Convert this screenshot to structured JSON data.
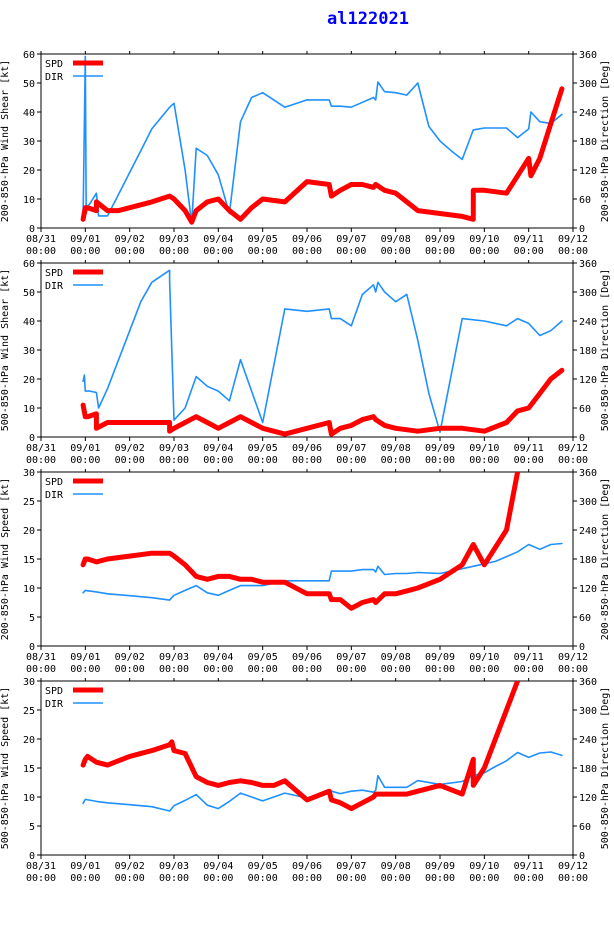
{
  "title": "al122021",
  "colors": {
    "spd": "#ff0000",
    "dir": "#1e90ff",
    "title": "#0000ff",
    "axis": "#000000"
  },
  "x_ticks": [
    {
      "date": "08/31",
      "time": "00:00"
    },
    {
      "date": "09/01",
      "time": "00:00"
    },
    {
      "date": "09/02",
      "time": "00:00"
    },
    {
      "date": "09/03",
      "time": "00:00"
    },
    {
      "date": "09/04",
      "time": "00:00"
    },
    {
      "date": "09/05",
      "time": "00:00"
    },
    {
      "date": "09/06",
      "time": "00:00"
    },
    {
      "date": "09/07",
      "time": "00:00"
    },
    {
      "date": "09/08",
      "time": "00:00"
    },
    {
      "date": "09/09",
      "time": "00:00"
    },
    {
      "date": "09/10",
      "time": "00:00"
    },
    {
      "date": "09/11",
      "time": "00:00"
    },
    {
      "date": "09/12",
      "time": "00:00"
    }
  ],
  "chart_data": [
    {
      "type": "line",
      "ylabel": "200-850-hPa Wind Shear [kt]",
      "ylabel_right": "200-850-hPa Direction [Deg]",
      "x_unit": "days since 08/31 00:00",
      "xlim": [
        0,
        12
      ],
      "ylim": [
        0,
        60
      ],
      "yticks": [
        0,
        10,
        20,
        30,
        40,
        50,
        60
      ],
      "ylim_right": [
        0,
        360
      ],
      "yticks_right": [
        0,
        60,
        120,
        180,
        240,
        300,
        360
      ],
      "legend": [
        "SPD",
        "DIR"
      ],
      "series": [
        {
          "name": "SPD",
          "axis": "left",
          "x": [
            0.95,
            1.0,
            1.05,
            1.25,
            1.25,
            1.5,
            1.75,
            2.0,
            2.25,
            2.5,
            2.9,
            3.0,
            3.25,
            3.4,
            3.5,
            3.75,
            4.0,
            4.25,
            4.5,
            4.75,
            5.0,
            5.5,
            6.0,
            6.5,
            6.55,
            6.75,
            7.0,
            7.25,
            7.5,
            7.55,
            7.75,
            8.0,
            8.25,
            8.5,
            9.0,
            9.5,
            9.75,
            9.75,
            10.0,
            10.5,
            10.75,
            11.0,
            11.05,
            11.25,
            11.5,
            11.75
          ],
          "values": [
            3,
            7,
            7,
            6,
            9,
            6,
            6,
            7,
            8,
            9,
            11,
            10,
            6,
            2,
            6,
            9,
            10,
            6,
            3,
            7,
            10,
            9,
            16,
            15,
            11,
            13,
            15,
            15,
            14,
            15,
            13,
            12,
            9,
            6,
            5,
            4,
            3,
            13,
            13,
            12,
            18,
            24,
            18,
            24,
            36,
            48
          ]
        },
        {
          "name": "DIR",
          "axis": "right",
          "x": [
            0.95,
            1.0,
            1.02,
            1.05,
            1.1,
            1.25,
            1.3,
            1.5,
            1.75,
            2.0,
            2.25,
            2.5,
            2.9,
            3.0,
            3.25,
            3.4,
            3.5,
            3.75,
            4.0,
            4.25,
            4.5,
            4.75,
            5.0,
            5.5,
            6.0,
            6.5,
            6.55,
            6.75,
            7.0,
            7.25,
            7.5,
            7.55,
            7.6,
            7.75,
            8.0,
            8.25,
            8.5,
            8.75,
            9.0,
            9.25,
            9.5,
            9.75,
            9.75,
            10.0,
            10.5,
            10.75,
            11.0,
            11.05,
            11.25,
            11.5,
            11.75
          ],
          "values": [
            25,
            355,
            30,
            45,
            50,
            72,
            25,
            25,
            70,
            115,
            160,
            205,
            250,
            258,
            120,
            10,
            165,
            150,
            110,
            30,
            220,
            270,
            280,
            250,
            265,
            265,
            252,
            252,
            250,
            260,
            270,
            265,
            302,
            282,
            280,
            275,
            300,
            210,
            180,
            160,
            142,
            203,
            203,
            207,
            207,
            187,
            205,
            240,
            220,
            216,
            235
          ]
        }
      ]
    },
    {
      "type": "line",
      "ylabel": "500-850-hPa Wind Shear [kt]",
      "ylabel_right": "500-850-hPa Direction [Deg]",
      "x_unit": "days since 08/31 00:00",
      "xlim": [
        0,
        12
      ],
      "ylim": [
        0,
        60
      ],
      "yticks": [
        0,
        10,
        20,
        30,
        40,
        50,
        60
      ],
      "ylim_right": [
        0,
        360
      ],
      "yticks_right": [
        0,
        60,
        120,
        180,
        240,
        300,
        360
      ],
      "legend": [
        "SPD",
        "DIR"
      ],
      "series": [
        {
          "name": "SPD",
          "axis": "left",
          "x": [
            0.95,
            1.0,
            1.05,
            1.25,
            1.25,
            1.5,
            1.75,
            2.0,
            2.5,
            2.9,
            2.9,
            3.0,
            3.25,
            3.5,
            3.75,
            4.0,
            4.25,
            4.5,
            4.75,
            5.0,
            5.5,
            6.0,
            6.5,
            6.55,
            6.75,
            7.0,
            7.25,
            7.5,
            7.55,
            7.75,
            8.0,
            8.5,
            9.0,
            9.5,
            10.0,
            10.5,
            10.75,
            11.0,
            11.25,
            11.5,
            11.75
          ],
          "values": [
            11,
            7,
            7,
            8,
            3,
            5,
            5,
            5,
            5,
            5,
            2,
            3,
            5,
            7,
            5,
            3,
            5,
            7,
            5,
            3,
            1,
            3,
            5,
            1,
            3,
            4,
            6,
            7,
            6,
            4,
            3,
            2,
            3,
            3,
            2,
            5,
            9,
            10,
            15,
            20,
            23
          ]
        },
        {
          "name": "DIR",
          "axis": "right",
          "x": [
            0.95,
            0.98,
            1.0,
            1.1,
            1.25,
            1.3,
            1.5,
            1.75,
            2.0,
            2.25,
            2.5,
            2.9,
            2.9,
            3.0,
            3.25,
            3.5,
            3.75,
            4.0,
            4.25,
            4.5,
            5.0,
            5.5,
            6.0,
            6.5,
            6.55,
            6.75,
            7.0,
            7.25,
            7.5,
            7.55,
            7.6,
            7.75,
            8.0,
            8.25,
            8.5,
            8.75,
            9.0,
            9.5,
            10.0,
            10.5,
            10.75,
            11.0,
            11.25,
            11.5,
            11.75
          ],
          "values": [
            115,
            128,
            95,
            95,
            92,
            60,
            100,
            160,
            220,
            280,
            320,
            345,
            325,
            35,
            60,
            125,
            105,
            95,
            75,
            160,
            30,
            265,
            260,
            265,
            245,
            245,
            230,
            295,
            315,
            300,
            320,
            300,
            280,
            295,
            200,
            90,
            10,
            245,
            240,
            230,
            245,
            235,
            210,
            220,
            240
          ]
        }
      ]
    },
    {
      "type": "line",
      "ylabel": "200-850-hPa Wind Speed [kt]",
      "ylabel_right": "200-850-hPa Direction [Deg]",
      "x_unit": "days since 08/31 00:00",
      "xlim": [
        0,
        12
      ],
      "ylim": [
        0,
        30
      ],
      "yticks": [
        0,
        5,
        10,
        15,
        20,
        25,
        30
      ],
      "ylim_right": [
        0,
        360
      ],
      "yticks_right": [
        0,
        60,
        120,
        180,
        240,
        300,
        360
      ],
      "legend": [
        "SPD",
        "DIR"
      ],
      "series": [
        {
          "name": "SPD",
          "axis": "left",
          "x": [
            0.95,
            1.0,
            1.05,
            1.25,
            1.5,
            2.0,
            2.5,
            2.9,
            3.0,
            3.25,
            3.5,
            3.75,
            4.0,
            4.25,
            4.5,
            4.75,
            5.0,
            5.5,
            6.0,
            6.5,
            6.55,
            6.75,
            7.0,
            7.25,
            7.5,
            7.55,
            7.75,
            8.0,
            8.25,
            8.5,
            9.0,
            9.5,
            9.75,
            10.0,
            10.5,
            10.75
          ],
          "values": [
            14,
            15,
            15,
            14.5,
            15,
            15.5,
            16,
            16,
            15.5,
            14,
            12,
            11.5,
            12,
            12,
            11.5,
            11.5,
            11,
            11,
            9,
            9,
            8,
            8,
            6.5,
            7.5,
            8,
            7.5,
            9,
            9,
            9.5,
            10,
            11.5,
            14,
            17.5,
            14,
            20,
            30
          ]
        },
        {
          "name": "DIR",
          "axis": "right",
          "x": [
            0.95,
            1.0,
            1.25,
            1.5,
            2.0,
            2.5,
            2.9,
            3.0,
            3.25,
            3.5,
            3.75,
            4.0,
            4.25,
            4.5,
            4.75,
            5.0,
            5.25,
            5.5,
            6.0,
            6.5,
            6.55,
            6.75,
            7.0,
            7.25,
            7.5,
            7.55,
            7.6,
            7.75,
            8.0,
            8.25,
            8.5,
            9.0,
            9.5,
            9.75,
            10.0,
            10.25,
            10.5,
            10.75,
            11.0,
            11.25,
            11.5,
            11.75
          ],
          "values": [
            110,
            115,
            112,
            108,
            104,
            100,
            95,
            105,
            115,
            125,
            110,
            105,
            115,
            125,
            125,
            125,
            130,
            135,
            135,
            135,
            155,
            155,
            155,
            158,
            158,
            153,
            165,
            148,
            150,
            150,
            152,
            150,
            160,
            165,
            170,
            175,
            185,
            195,
            210,
            200,
            210,
            212
          ]
        }
      ]
    },
    {
      "type": "line",
      "ylabel": "500-850-hPa Wind Speed [kt]",
      "ylabel_right": "500-850-hPa Direction [Deg]",
      "x_unit": "days since 08/31 00:00",
      "xlim": [
        0,
        12
      ],
      "ylim": [
        0,
        30
      ],
      "yticks": [
        0,
        5,
        10,
        15,
        20,
        25,
        30
      ],
      "ylim_right": [
        0,
        360
      ],
      "yticks_right": [
        0,
        60,
        120,
        180,
        240,
        300,
        360
      ],
      "legend": [
        "SPD",
        "DIR"
      ],
      "series": [
        {
          "name": "SPD",
          "axis": "left",
          "x": [
            0.95,
            1.0,
            1.05,
            1.25,
            1.5,
            2.0,
            2.5,
            2.9,
            2.95,
            3.0,
            3.25,
            3.5,
            3.75,
            4.0,
            4.25,
            4.5,
            4.75,
            5.0,
            5.25,
            5.5,
            6.0,
            6.5,
            6.55,
            6.75,
            7.0,
            7.25,
            7.5,
            7.55,
            7.75,
            8.0,
            8.25,
            8.5,
            9.0,
            9.5,
            9.75,
            9.75,
            10.0,
            10.5,
            10.75
          ],
          "values": [
            15.5,
            16.5,
            17,
            16,
            15.5,
            17,
            18,
            19,
            19.5,
            18,
            17.5,
            13.5,
            12.5,
            12,
            12.5,
            12.8,
            12.5,
            12,
            12,
            12.8,
            9.5,
            11,
            9.5,
            9,
            8,
            9,
            10,
            10.5,
            10.5,
            10.5,
            10.5,
            11,
            12,
            10.5,
            16.5,
            12,
            15,
            25,
            30
          ]
        },
        {
          "name": "DIR",
          "axis": "right",
          "x": [
            0.95,
            1.0,
            1.25,
            1.5,
            2.0,
            2.5,
            2.9,
            3.0,
            3.25,
            3.5,
            3.75,
            4.0,
            4.25,
            4.5,
            4.75,
            5.0,
            5.25,
            5.5,
            6.0,
            6.5,
            6.55,
            6.75,
            7.0,
            7.25,
            7.5,
            7.55,
            7.6,
            7.75,
            8.0,
            8.25,
            8.5,
            9.0,
            9.5,
            9.75,
            10.0,
            10.25,
            10.5,
            10.75,
            11.0,
            11.25,
            11.5,
            11.75
          ],
          "values": [
            107,
            115,
            111,
            108,
            104,
            100,
            91,
            102,
            113,
            125,
            103,
            96,
            111,
            128,
            120,
            112,
            120,
            128,
            118,
            127,
            132,
            127,
            132,
            134,
            130,
            134,
            164,
            140,
            140,
            140,
            154,
            146,
            152,
            164,
            170,
            183,
            195,
            212,
            202,
            211,
            213,
            206
          ]
        }
      ]
    }
  ]
}
